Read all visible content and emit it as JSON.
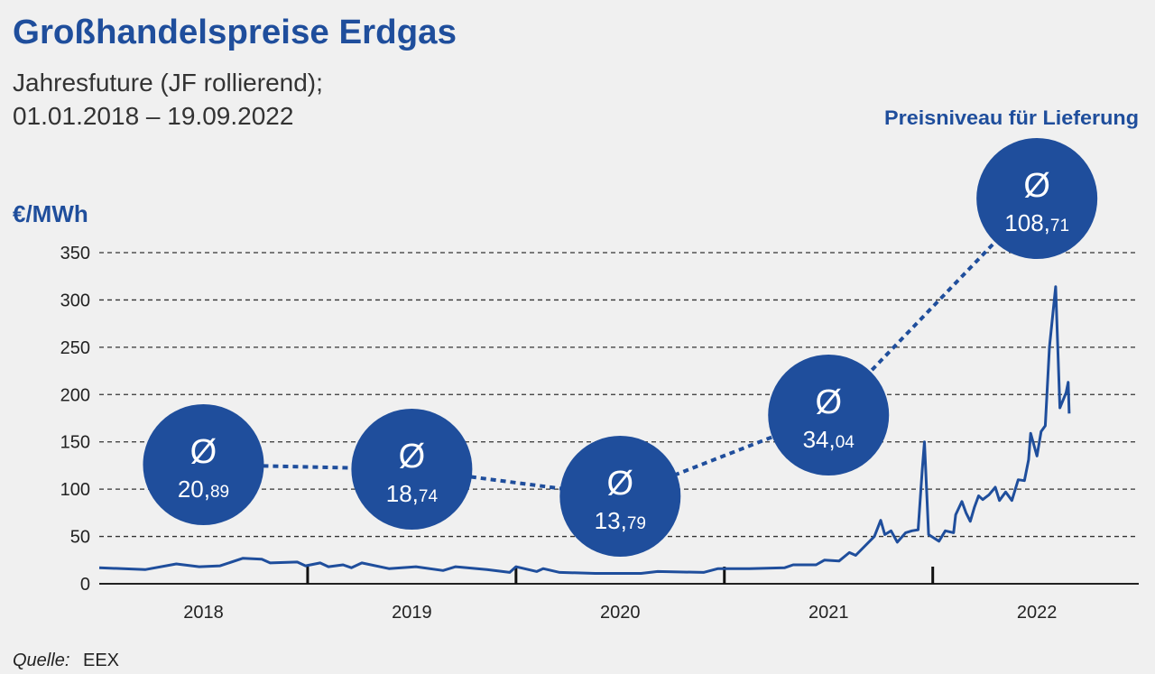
{
  "chart_data": {
    "type": "line",
    "title": "Großhandelspreise Erdgas",
    "subtitle": [
      "Jahresfuture (JF rollierend);",
      "01.01.2018 – 19.09.2022"
    ],
    "y_label": "€/MWh",
    "annotation_title": "Preisniveau für Lieferung",
    "source_label": "Quelle:",
    "source": "EEX",
    "categories": [
      "2018",
      "2019",
      "2020",
      "2021",
      "2022"
    ],
    "xlim": [
      2018,
      2022.98
    ],
    "ylim": [
      0,
      350
    ],
    "yticks": [
      0,
      50,
      100,
      150,
      200,
      250,
      300,
      350
    ],
    "grid": true,
    "series": [
      {
        "color": "#1f4e9c",
        "x": [
          2018.0,
          2018.22,
          2018.37,
          2018.48,
          2018.58,
          2018.69,
          2018.78,
          2018.82,
          2018.95,
          2018.99,
          2019.06,
          2019.1,
          2019.17,
          2019.21,
          2019.26,
          2019.39,
          2019.52,
          2019.65,
          2019.71,
          2019.86,
          2019.97,
          2020.0,
          2020.1,
          2020.13,
          2020.21,
          2020.38,
          2020.6,
          2020.68,
          2020.9,
          2020.97,
          2021.12,
          2021.29,
          2021.33,
          2021.44,
          2021.48,
          2021.55,
          2021.6,
          2021.63,
          2021.72,
          2021.75,
          2021.77,
          2021.8,
          2021.83,
          2021.87,
          2021.9,
          2021.93,
          2021.95,
          2021.96,
          2021.98,
          2022.03,
          2022.06,
          2022.1,
          2022.11,
          2022.14,
          2022.16,
          2022.18,
          2022.2,
          2022.22,
          2022.24,
          2022.27,
          2022.3,
          2022.32,
          2022.35,
          2022.38,
          2022.41,
          2022.44,
          2022.46,
          2022.47,
          2022.5,
          2022.52,
          2022.54,
          2022.56,
          2022.59,
          2022.61,
          2022.64,
          2022.65,
          2022.655
        ],
        "values": [
          17,
          15,
          21,
          18,
          19,
          27,
          26,
          22,
          23,
          19,
          22,
          18,
          20,
          17,
          22,
          16,
          18,
          14,
          18,
          15,
          12,
          18,
          13,
          16,
          12,
          11,
          11,
          13,
          12,
          16,
          16,
          17,
          20,
          20,
          25,
          24,
          33,
          30,
          50,
          67,
          52,
          56,
          44,
          54,
          56,
          57,
          121,
          150,
          52,
          45,
          56,
          54,
          73,
          87,
          75,
          66,
          81,
          93,
          89,
          94,
          102,
          88,
          97,
          88,
          110,
          109,
          131,
          159,
          135,
          161,
          167,
          250,
          314,
          186,
          202,
          213,
          180
        ]
      }
    ],
    "averages": {
      "symbol": "Ø",
      "values": [
        20.89,
        18.74,
        13.79,
        34.04,
        108.71
      ],
      "value_labels": [
        "20,89",
        "18,74",
        "13,79",
        "34,04",
        "108,71"
      ]
    }
  }
}
